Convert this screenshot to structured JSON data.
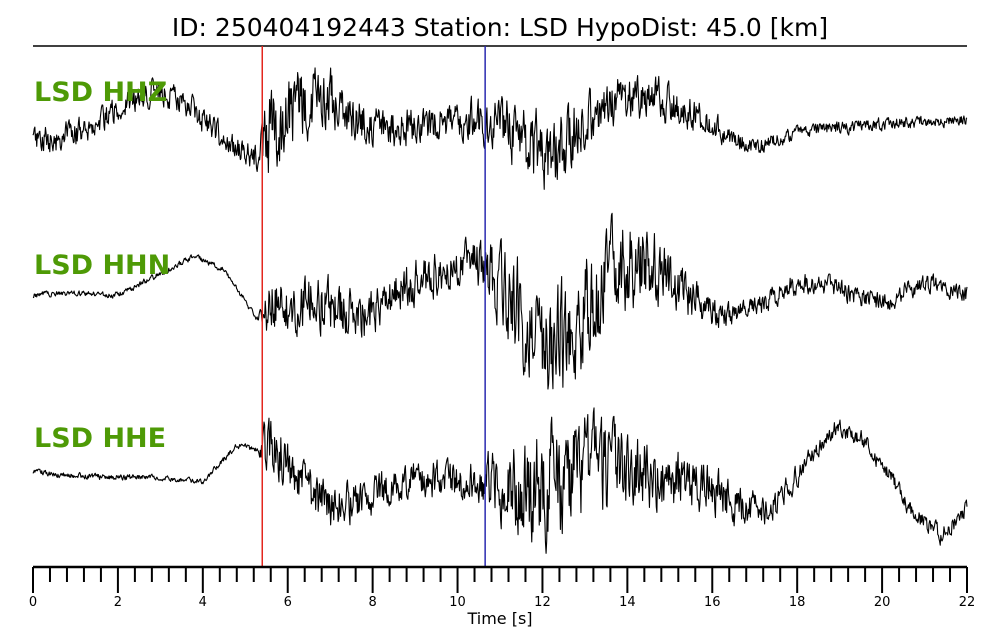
{
  "chart_data": {
    "type": "line",
    "title": "ID: 250404192443   Station: LSD   HypoDist:    45.0 [km]",
    "xlabel": "Time [s]",
    "xlim": [
      0,
      22
    ],
    "x_ticks": [
      0,
      2,
      4,
      6,
      8,
      10,
      12,
      14,
      16,
      18,
      20,
      22
    ],
    "x_tick_labels": [
      "0",
      "2",
      "4",
      "6",
      "8",
      "10",
      "12",
      "14",
      "16",
      "18",
      "20",
      "22"
    ],
    "minor_tick_step": 0.4,
    "grid": false,
    "markers": [
      {
        "time": 5.4,
        "color": "#e3261e"
      },
      {
        "time": 10.65,
        "color": "#2a2ab0"
      }
    ],
    "series": [
      {
        "name": "LSD HHZ",
        "color": "#000000",
        "envelope": [
          [
            0,
            0.25
          ],
          [
            5.3,
            0.25
          ],
          [
            5.5,
            0.9
          ],
          [
            6.5,
            0.6
          ],
          [
            8,
            0.35
          ],
          [
            10,
            0.35
          ],
          [
            10.7,
            0.45
          ],
          [
            12,
            0.7
          ],
          [
            13.5,
            0.45
          ],
          [
            15,
            0.35
          ],
          [
            16.5,
            0.2
          ],
          [
            18,
            0.12
          ],
          [
            22,
            0.1
          ]
        ],
        "trend": [
          [
            0,
            -0.15
          ],
          [
            0.5,
            -0.15
          ],
          [
            1.5,
            0.05
          ],
          [
            2.5,
            0.4
          ],
          [
            3.0,
            0.45
          ],
          [
            3.8,
            0.2
          ],
          [
            4.6,
            -0.2
          ],
          [
            5.3,
            -0.4
          ],
          [
            5.5,
            -0.2
          ],
          [
            6.2,
            0.25
          ],
          [
            6.8,
            0.45
          ],
          [
            7.5,
            0.1
          ],
          [
            8.5,
            0.0
          ],
          [
            9.5,
            0.05
          ],
          [
            10.5,
            0.1
          ],
          [
            11.3,
            -0.05
          ],
          [
            12.2,
            -0.4
          ],
          [
            13.0,
            0.1
          ],
          [
            13.8,
            0.35
          ],
          [
            14.8,
            0.35
          ],
          [
            15.6,
            0.15
          ],
          [
            16.4,
            -0.1
          ],
          [
            17.0,
            -0.25
          ],
          [
            18.0,
            -0.05
          ],
          [
            19.0,
            0.0
          ],
          [
            20.0,
            0.05
          ],
          [
            22,
            0.1
          ]
        ]
      },
      {
        "name": "LSD HHN",
        "color": "#000000",
        "envelope": [
          [
            0,
            0.05
          ],
          [
            5.3,
            0.05
          ],
          [
            5.5,
            0.5
          ],
          [
            8,
            0.45
          ],
          [
            10,
            0.35
          ],
          [
            10.6,
            0.45
          ],
          [
            11.5,
            0.9
          ],
          [
            12.5,
            1.0
          ],
          [
            14,
            0.85
          ],
          [
            15.5,
            0.4
          ],
          [
            16.5,
            0.2
          ],
          [
            22,
            0.15
          ]
        ],
        "trend": [
          [
            0,
            0.0
          ],
          [
            1.0,
            0.02
          ],
          [
            2.0,
            0.0
          ],
          [
            3.0,
            0.25
          ],
          [
            3.8,
            0.45
          ],
          [
            4.5,
            0.3
          ],
          [
            5.3,
            -0.3
          ],
          [
            5.5,
            -0.1
          ],
          [
            6.5,
            -0.05
          ],
          [
            7.5,
            -0.2
          ],
          [
            8.0,
            -0.2
          ],
          [
            9.0,
            0.15
          ],
          [
            10.0,
            0.35
          ],
          [
            10.4,
            0.4
          ],
          [
            11.0,
            0.1
          ],
          [
            12.0,
            -0.55
          ],
          [
            12.8,
            -0.4
          ],
          [
            13.5,
            0.2
          ],
          [
            14.2,
            0.4
          ],
          [
            14.8,
            0.25
          ],
          [
            15.6,
            -0.1
          ],
          [
            16.3,
            -0.25
          ],
          [
            17.0,
            -0.15
          ],
          [
            18.0,
            0.15
          ],
          [
            18.8,
            0.1
          ],
          [
            20.0,
            -0.1
          ],
          [
            21.0,
            0.15
          ],
          [
            22,
            0.0
          ]
        ]
      },
      {
        "name": "LSD HHE",
        "color": "#000000",
        "envelope": [
          [
            0,
            0.05
          ],
          [
            5.3,
            0.05
          ],
          [
            5.5,
            0.5
          ],
          [
            6.5,
            0.4
          ],
          [
            8.5,
            0.3
          ],
          [
            10.5,
            0.35
          ],
          [
            11.5,
            0.9
          ],
          [
            12.3,
            1.0
          ],
          [
            13.5,
            0.7
          ],
          [
            15.5,
            0.45
          ],
          [
            17.0,
            0.3
          ],
          [
            18.5,
            0.15
          ],
          [
            22,
            0.15
          ]
        ],
        "trend": [
          [
            0,
            0.05
          ],
          [
            1.5,
            0.0
          ],
          [
            3.0,
            0.0
          ],
          [
            4.0,
            -0.05
          ],
          [
            4.8,
            0.35
          ],
          [
            5.3,
            0.3
          ],
          [
            5.8,
            0.3
          ],
          [
            6.5,
            -0.2
          ],
          [
            7.0,
            -0.35
          ],
          [
            8.0,
            -0.2
          ],
          [
            9.0,
            0.0
          ],
          [
            10.0,
            -0.05
          ],
          [
            10.7,
            -0.05
          ],
          [
            12.0,
            -0.15
          ],
          [
            13.0,
            0.1
          ],
          [
            14.0,
            0.05
          ],
          [
            15.0,
            -0.05
          ],
          [
            16.0,
            -0.15
          ],
          [
            16.8,
            -0.4
          ],
          [
            17.5,
            -0.3
          ],
          [
            18.2,
            0.15
          ],
          [
            18.9,
            0.55
          ],
          [
            19.5,
            0.45
          ],
          [
            20.2,
            0.0
          ],
          [
            20.8,
            -0.45
          ],
          [
            21.4,
            -0.65
          ],
          [
            22,
            -0.35
          ]
        ]
      }
    ]
  }
}
